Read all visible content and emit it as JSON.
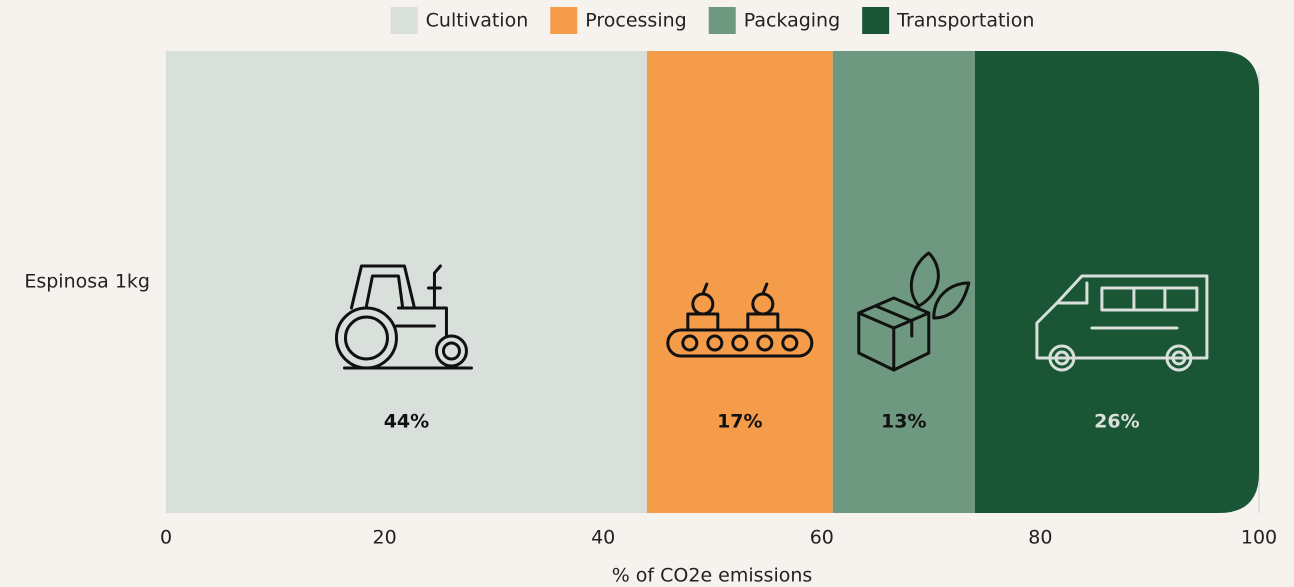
{
  "chart_data": {
    "type": "stacked_barh",
    "categories": [
      "Espinosa 1kg"
    ],
    "series": [
      {
        "name": "Cultivation",
        "color": "#d9dfdb",
        "values": [
          44
        ],
        "value_labels": [
          "44%"
        ]
      },
      {
        "name": "Processing",
        "color": "#f49c4a",
        "values": [
          17
        ],
        "value_labels": [
          "17%"
        ]
      },
      {
        "name": "Packaging",
        "color": "#6e9880",
        "values": [
          13
        ],
        "value_labels": [
          "13%"
        ]
      },
      {
        "name": "Transportation",
        "color": "#1a5635",
        "values": [
          26
        ],
        "value_labels": [
          "26%"
        ]
      }
    ],
    "xlabel": "% of CO2e emissions",
    "xlim": [
      0,
      100
    ],
    "xticks": [
      0,
      20,
      40,
      60,
      80,
      100
    ],
    "legend": "top"
  }
}
